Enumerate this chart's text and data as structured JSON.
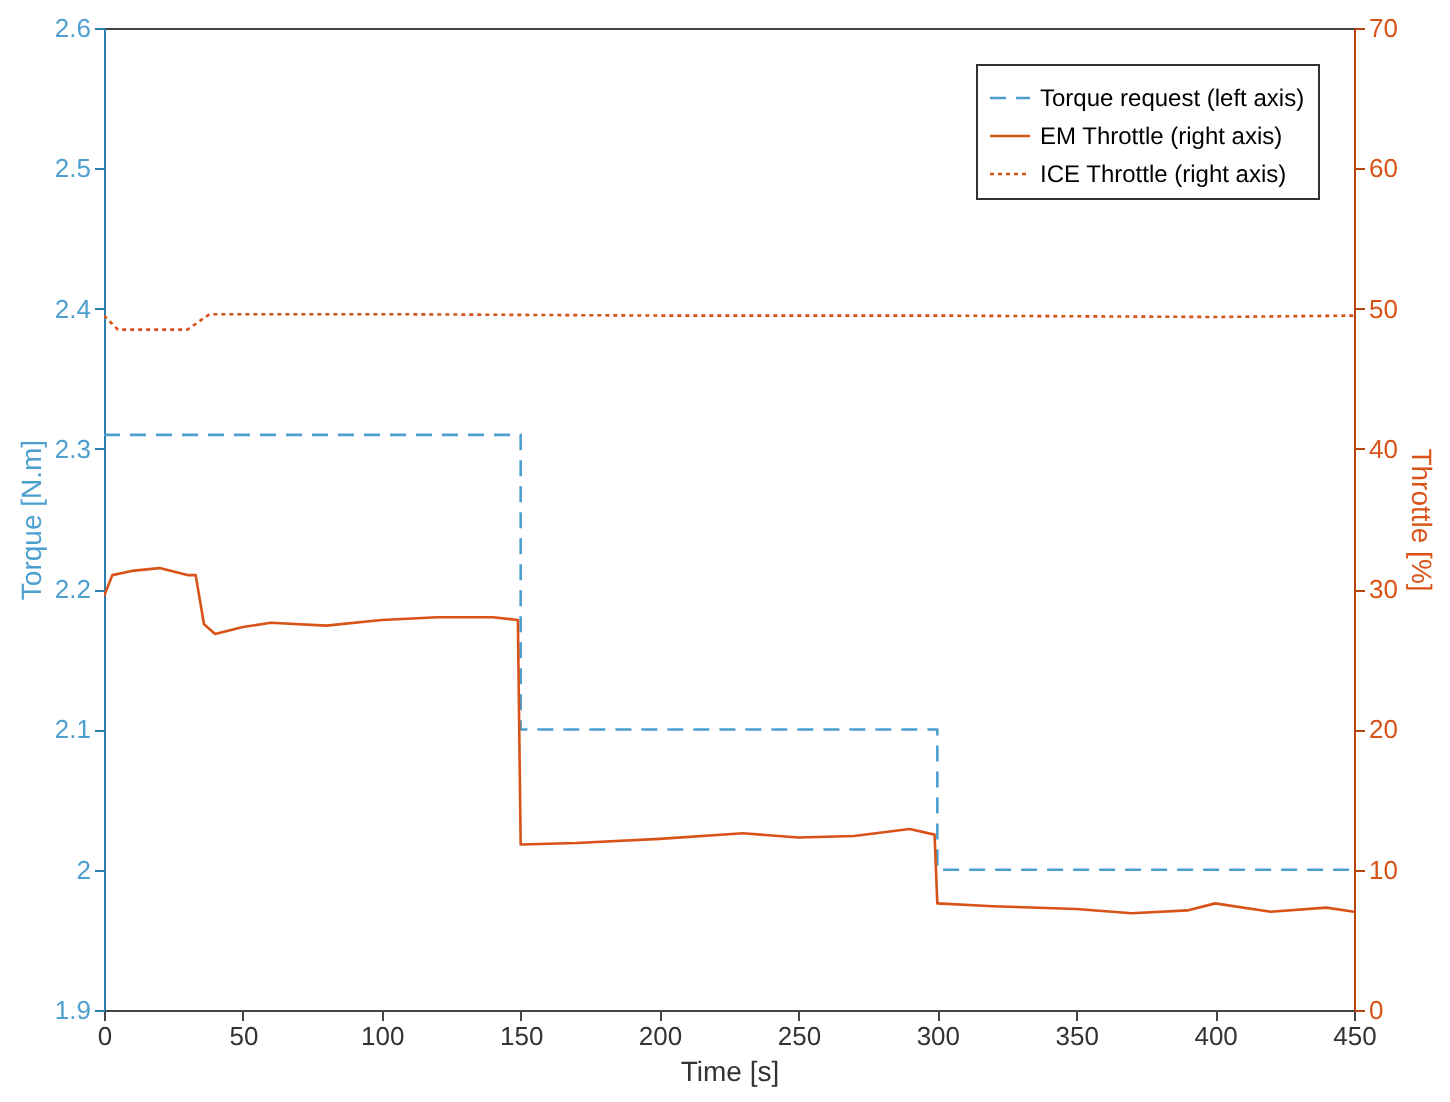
{
  "chart_data": {
    "type": "line",
    "xlabel": "Time [s]",
    "ylabel": "Torque [N.m]",
    "y2label": "Throttle [%]",
    "xlim": [
      0,
      450
    ],
    "xticks": [
      0,
      50,
      100,
      150,
      200,
      250,
      300,
      350,
      400,
      450
    ],
    "ylim": [
      1.9,
      2.6
    ],
    "yticks": [
      1.9,
      2,
      2.1,
      2.2,
      2.3,
      2.4,
      2.5,
      2.6
    ],
    "y2lim": [
      0,
      70
    ],
    "y2ticks": [
      0,
      10,
      20,
      30,
      40,
      50,
      60,
      70
    ],
    "grid": false,
    "legend": "top right",
    "marker": "none",
    "series": [
      {
        "name": "Torque request (left axis)",
        "color": "#4d9fcf",
        "line_style": "dashed",
        "x": [
          0,
          150,
          150,
          300,
          300,
          450
        ],
        "values": [
          2.31,
          2.31,
          2.1,
          2.1,
          2.0,
          2.0
        ]
      },
      {
        "name": "EM Throttle (right axis)",
        "color": "#d95319",
        "line_style": "solid",
        "axis": "y2",
        "x": [
          0,
          3,
          10,
          20,
          30,
          33,
          36,
          40,
          50,
          60,
          80,
          100,
          120,
          140,
          149,
          150,
          170,
          200,
          230,
          250,
          270,
          290,
          299,
          300,
          320,
          350,
          370,
          390,
          400,
          420,
          440,
          450
        ],
        "values": [
          29.5,
          31.0,
          31.3,
          31.5,
          31.0,
          31.0,
          27.5,
          26.8,
          27.3,
          27.6,
          27.4,
          27.8,
          28.0,
          28.0,
          27.8,
          11.8,
          11.9,
          12.2,
          12.6,
          12.3,
          12.4,
          12.9,
          12.5,
          7.6,
          7.4,
          7.2,
          6.9,
          7.1,
          7.6,
          7.0,
          7.3,
          7.0
        ]
      },
      {
        "name": "ICE Throttle (right axis)",
        "color": "#d95319",
        "line_style": "dotted",
        "axis": "y2",
        "x": [
          0,
          5,
          30,
          38,
          100,
          200,
          300,
          400,
          450
        ],
        "values": [
          49.5,
          48.5,
          48.5,
          49.6,
          49.6,
          49.5,
          49.5,
          49.4,
          49.5
        ]
      }
    ]
  }
}
